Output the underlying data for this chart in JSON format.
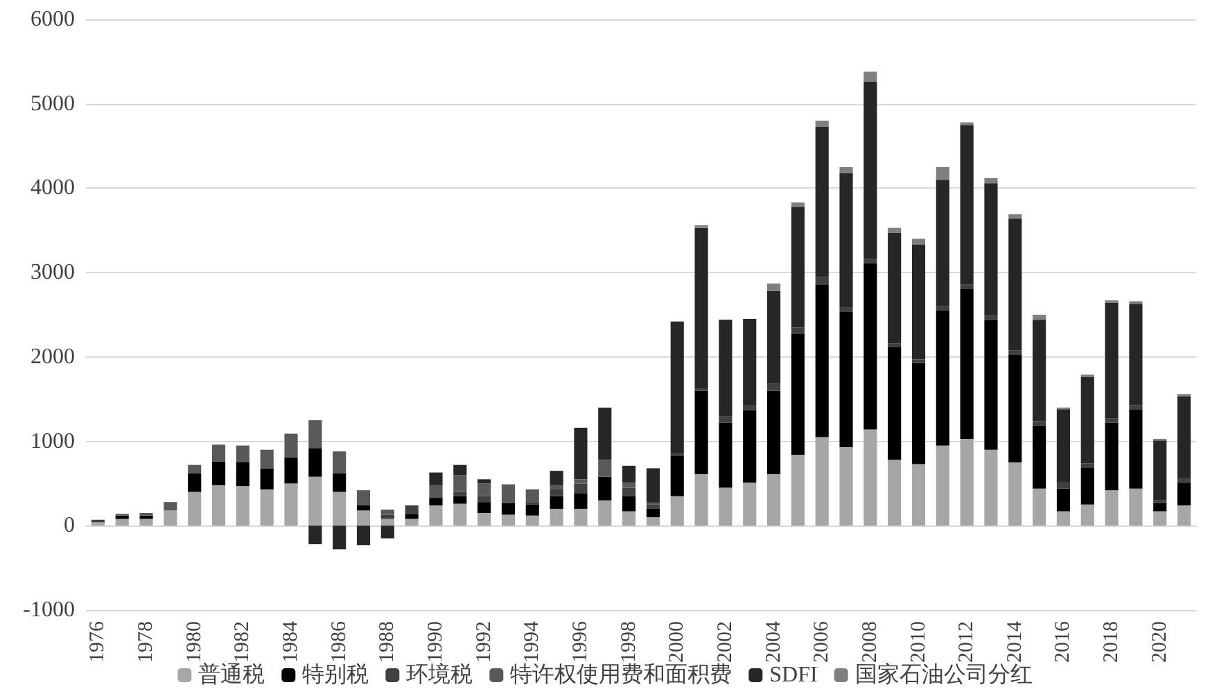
{
  "chart_data": {
    "type": "bar",
    "stacked": true,
    "categories": [
      "1976",
      null,
      "1978",
      null,
      "1980",
      null,
      "1982",
      null,
      "1984",
      null,
      "1986",
      null,
      "1988",
      null,
      "1990",
      null,
      "1992",
      null,
      "1994",
      null,
      "1996",
      null,
      "1998",
      null,
      "2000",
      null,
      "2002",
      null,
      "2004",
      null,
      "2006",
      null,
      "2008",
      null,
      "2010",
      null,
      "2012",
      null,
      "2014",
      null,
      "2016",
      null,
      "2018",
      null,
      "2020",
      null
    ],
    "series": [
      {
        "name": "普通税",
        "color": "#a6a6a6",
        "values": [
          40,
          80,
          80,
          180,
          400,
          480,
          470,
          430,
          500,
          580,
          400,
          180,
          80,
          80,
          240,
          260,
          150,
          130,
          120,
          200,
          200,
          300,
          170,
          100,
          350,
          610,
          450,
          510,
          610,
          840,
          1050,
          930,
          1140,
          780,
          730,
          950,
          1030,
          900,
          750,
          440,
          170,
          250,
          420,
          440,
          170,
          240
        ]
      },
      {
        "name": "特别税",
        "color": "#000000",
        "values": [
          0,
          40,
          40,
          0,
          220,
          280,
          280,
          250,
          310,
          340,
          220,
          60,
          0,
          60,
          90,
          90,
          130,
          140,
          130,
          150,
          180,
          280,
          180,
          100,
          480,
          990,
          770,
          860,
          990,
          1430,
          1810,
          1610,
          1970,
          1340,
          1200,
          1600,
          1780,
          1540,
          1280,
          750,
          270,
          440,
          800,
          940,
          100,
          270
        ]
      },
      {
        "name": "环境税",
        "color": "#404040",
        "values": [
          30,
          0,
          0,
          0,
          0,
          0,
          0,
          0,
          0,
          0,
          0,
          0,
          50,
          100,
          0,
          50,
          70,
          0,
          30,
          80,
          120,
          0,
          100,
          50,
          20,
          30,
          80,
          50,
          80,
          80,
          90,
          50,
          50,
          40,
          40,
          50,
          50,
          50,
          50,
          50,
          80,
          50,
          50,
          50,
          30,
          50
        ]
      },
      {
        "name": "特许权使用费和面积费",
        "color": "#595959",
        "values": [
          0,
          20,
          30,
          100,
          100,
          200,
          200,
          220,
          280,
          330,
          260,
          180,
          60,
          0,
          150,
          200,
          150,
          220,
          150,
          50,
          50,
          200,
          60,
          20,
          0,
          0,
          0,
          0,
          0,
          0,
          0,
          0,
          0,
          0,
          0,
          0,
          0,
          0,
          0,
          0,
          0,
          0,
          0,
          0,
          0,
          0
        ]
      },
      {
        "name": "SDFI",
        "color": "#262626",
        "values": [
          0,
          0,
          0,
          0,
          0,
          0,
          0,
          0,
          0,
          -220,
          -280,
          -230,
          -150,
          0,
          150,
          120,
          50,
          0,
          0,
          170,
          610,
          620,
          200,
          410,
          1570,
          1900,
          1140,
          1030,
          1100,
          1430,
          1780,
          1590,
          2100,
          1310,
          1360,
          1500,
          1890,
          1570,
          1560,
          1200,
          860,
          1020,
          1370,
          1200,
          710,
          970
        ]
      },
      {
        "name": "国家石油公司分红",
        "color": "#7f7f7f",
        "values": [
          0,
          0,
          0,
          0,
          0,
          0,
          0,
          0,
          0,
          0,
          0,
          0,
          0,
          0,
          0,
          0,
          0,
          0,
          0,
          0,
          0,
          0,
          0,
          0,
          0,
          30,
          0,
          0,
          90,
          50,
          70,
          70,
          120,
          60,
          70,
          150,
          30,
          60,
          50,
          60,
          20,
          30,
          30,
          30,
          20,
          30
        ]
      }
    ],
    "ylim": [
      -1000,
      6000
    ],
    "yticks": [
      -1000,
      0,
      1000,
      2000,
      3000,
      4000,
      5000,
      6000
    ],
    "grid": "y",
    "legend": "bottom"
  }
}
